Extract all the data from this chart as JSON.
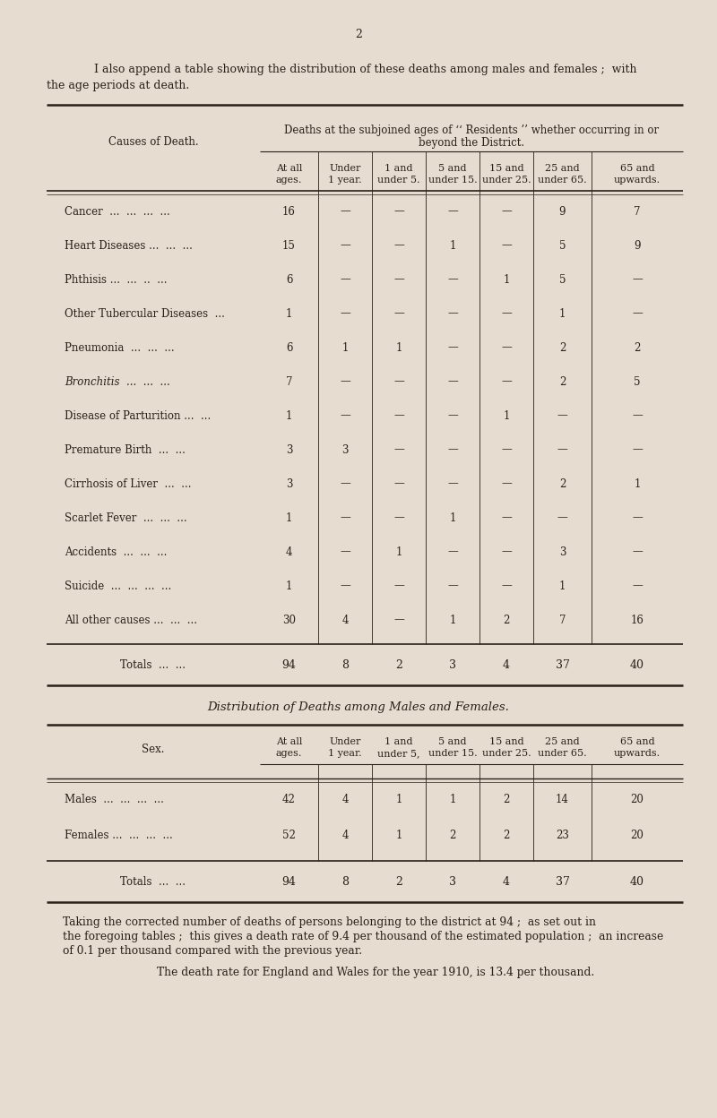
{
  "page_number": "2",
  "bg_color": "#e6ddd0",
  "text_color": "#2a2018",
  "intro_line1": "I also append a table showing the distribution of these deaths among males and females ;  with",
  "intro_line2": "the age periods at death.",
  "table1_title_line1": "Deaths at the subjoined ages of ‘‘ Residents ’’ whether occurring in or",
  "table1_title_line2": "beyond the District.",
  "table1_col_header_left": "Causes of Death.",
  "table1_col_headers": [
    "At all\nages.",
    "Under\n1 year.",
    "1 and\nunder 5.",
    "5 and\nunder 15.",
    "15 and\nunder 25.",
    "25 and\nunder 65.",
    "65 and\nupwards."
  ],
  "table1_rows": [
    [
      "Cancer  ...  ...  ...  ...",
      "16",
      "—",
      "—",
      "—",
      "—",
      "9",
      "7",
      false
    ],
    [
      "Heart Diseases ...  ...  ...",
      "15",
      "—",
      "—",
      "1",
      "—",
      "5",
      "9",
      false
    ],
    [
      "Phthisis ...  ...  ..  ...",
      "6",
      "—",
      "—",
      "—",
      "1",
      "5",
      "—",
      false
    ],
    [
      "Other Tubercular Diseases  ...",
      "1",
      "—",
      "—",
      "—",
      "—",
      "1",
      "—",
      false
    ],
    [
      "Pneumonia  ...  ...  ...",
      "6",
      "1",
      "1",
      "—",
      "—",
      "2",
      "2",
      false
    ],
    [
      "Bronchitis  ...  ...  ...",
      "7",
      "—",
      "—",
      "—",
      "—",
      "2",
      "5",
      true
    ],
    [
      "Disease of Parturition ...  ...",
      "1",
      "—",
      "—",
      "—",
      "1",
      "—",
      "—",
      false
    ],
    [
      "Premature Birth  ...  ...",
      "3",
      "3",
      "—",
      "—",
      "—",
      "—",
      "—",
      false
    ],
    [
      "Cirrhosis of Liver  ...  ...",
      "3",
      "—",
      "—",
      "—",
      "—",
      "2",
      "1",
      false
    ],
    [
      "Scarlet Fever  ...  ...  ...",
      "1",
      "—",
      "—",
      "1",
      "—",
      "—",
      "—",
      false
    ],
    [
      "Accidents  ...  ...  ...",
      "4",
      "—",
      "1",
      "—",
      "—",
      "3",
      "—",
      false
    ],
    [
      "Suicide  ...  ...  ...  ...",
      "1",
      "—",
      "—",
      "—",
      "—",
      "1",
      "—",
      false
    ],
    [
      "All other causes ...  ...  ...",
      "30",
      "4",
      "—",
      "1",
      "2",
      "7",
      "16",
      false
    ]
  ],
  "table1_totals": [
    "Totals  ...  ...",
    "94",
    "8",
    "2",
    "3",
    "4",
    "37",
    "40"
  ],
  "table2_title": "Distribution of Deaths among Males and Females.",
  "table2_col_header_left": "Sex.",
  "table2_col_headers": [
    "At all\nages.",
    "Under\n1 year.",
    "1 and\nunder 5,",
    "5 and\nunder 15.",
    "15 and\nunder 25.",
    "25 and\nunder 65.",
    "65 and\nupwards."
  ],
  "table2_rows": [
    [
      "Males  ...  ...  ...  ...",
      "42",
      "4",
      "1",
      "1",
      "2",
      "14",
      "20"
    ],
    [
      "Females ...  ...  ...  ...",
      "52",
      "4",
      "1",
      "2",
      "2",
      "23",
      "20"
    ]
  ],
  "table2_totals": [
    "Totals  ...  ...",
    "94",
    "8",
    "2",
    "3",
    "4",
    "37",
    "40"
  ],
  "footer_line1": "Taking the corrected number of deaths of persons belonging to the district at 94 ;  as set out in",
  "footer_line2": "the foregoing tables ;  this gives a death rate of 9.4 per thousand of the estimated population ;  an increase",
  "footer_line3": "of 0.1 per thousand compared with the previous year.",
  "footer_line4": "The death rate for England and Wales for the year 1910, is 13.4 per thousand."
}
